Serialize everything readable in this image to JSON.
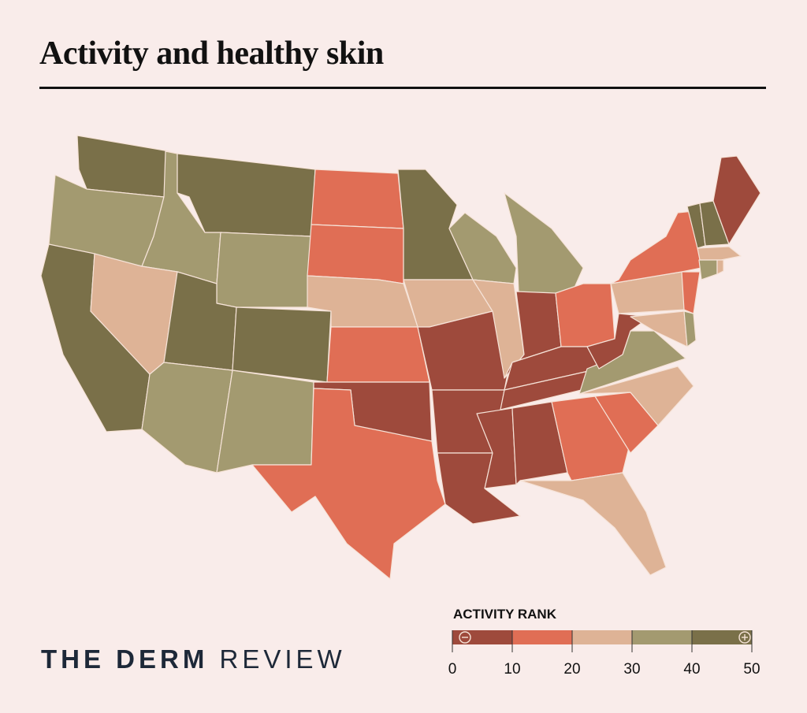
{
  "title": "Activity and healthy skin",
  "brand": {
    "part1": "THE DERM",
    "part2": "REVIEW"
  },
  "chart_data": {
    "type": "choropleth",
    "legend": {
      "title": "ACTIVITY RANK",
      "ticks": [
        "0",
        "10",
        "20",
        "30",
        "40",
        "50"
      ],
      "low_symbol": "minus-icon",
      "high_symbol": "plus-icon",
      "bins": [
        {
          "range": [
            0,
            10
          ],
          "color": "#9e4a3c"
        },
        {
          "range": [
            10,
            20
          ],
          "color": "#e06e55"
        },
        {
          "range": [
            20,
            30
          ],
          "color": "#deb396"
        },
        {
          "range": [
            30,
            40
          ],
          "color": "#a39a70"
        },
        {
          "range": [
            40,
            50
          ],
          "color": "#7a7049"
        }
      ],
      "placement": "bottom-right"
    },
    "regions": [
      {
        "state": "WA",
        "bin": 5
      },
      {
        "state": "OR",
        "bin": 4
      },
      {
        "state": "CA",
        "bin": 5
      },
      {
        "state": "ID",
        "bin": 4
      },
      {
        "state": "MT",
        "bin": 5
      },
      {
        "state": "WY",
        "bin": 4
      },
      {
        "state": "NV",
        "bin": 3
      },
      {
        "state": "UT",
        "bin": 5
      },
      {
        "state": "CO",
        "bin": 5
      },
      {
        "state": "AZ",
        "bin": 4
      },
      {
        "state": "NM",
        "bin": 4
      },
      {
        "state": "ND",
        "bin": 2
      },
      {
        "state": "SD",
        "bin": 2
      },
      {
        "state": "NE",
        "bin": 3
      },
      {
        "state": "KS",
        "bin": 2
      },
      {
        "state": "OK",
        "bin": 1
      },
      {
        "state": "TX",
        "bin": 2
      },
      {
        "state": "MN",
        "bin": 5
      },
      {
        "state": "IA",
        "bin": 3
      },
      {
        "state": "MO",
        "bin": 1
      },
      {
        "state": "AR",
        "bin": 1
      },
      {
        "state": "LA",
        "bin": 1
      },
      {
        "state": "WI",
        "bin": 4
      },
      {
        "state": "IL",
        "bin": 3
      },
      {
        "state": "MI",
        "bin": 4
      },
      {
        "state": "IN",
        "bin": 1
      },
      {
        "state": "OH",
        "bin": 2
      },
      {
        "state": "KY",
        "bin": 1
      },
      {
        "state": "TN",
        "bin": 1
      },
      {
        "state": "MS",
        "bin": 1
      },
      {
        "state": "AL",
        "bin": 1
      },
      {
        "state": "GA",
        "bin": 2
      },
      {
        "state": "FL",
        "bin": 3
      },
      {
        "state": "SC",
        "bin": 2
      },
      {
        "state": "NC",
        "bin": 3
      },
      {
        "state": "VA",
        "bin": 4
      },
      {
        "state": "WV",
        "bin": 1
      },
      {
        "state": "PA",
        "bin": 3
      },
      {
        "state": "NY",
        "bin": 2
      },
      {
        "state": "NJ",
        "bin": 2
      },
      {
        "state": "MD",
        "bin": 3
      },
      {
        "state": "DE",
        "bin": 4
      },
      {
        "state": "VT",
        "bin": 5
      },
      {
        "state": "NH",
        "bin": 5
      },
      {
        "state": "ME",
        "bin": 1
      },
      {
        "state": "MA",
        "bin": 3
      },
      {
        "state": "CT",
        "bin": 4
      },
      {
        "state": "RI",
        "bin": 3
      }
    ]
  }
}
